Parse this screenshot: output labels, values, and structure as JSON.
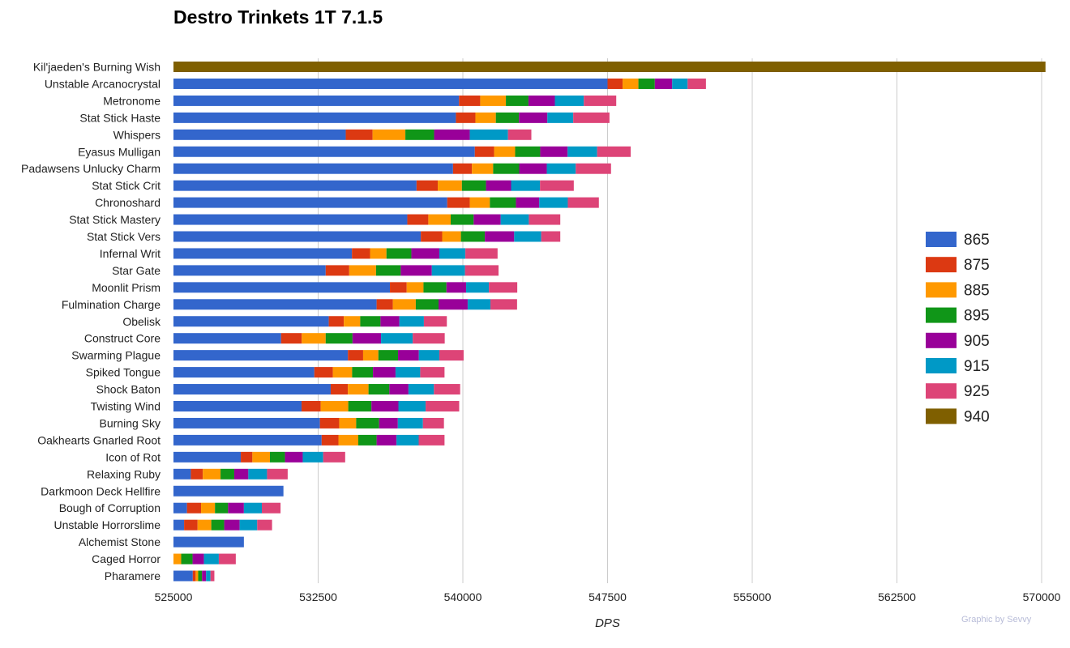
{
  "chart_data": {
    "type": "bar",
    "orientation": "horizontal",
    "stacked": true,
    "title": "Destro Trinkets 1T 7.1.5",
    "xlabel": "DPS",
    "ylabel": "",
    "xlim": [
      525000,
      570000
    ],
    "x_ticks": [
      "525000",
      "532500",
      "540000",
      "547500",
      "555000",
      "562500",
      "570000"
    ],
    "x_tick_values": [
      525000,
      532500,
      540000,
      547500,
      555000,
      562500,
      570000
    ],
    "grid": true,
    "legend_position": "right",
    "credit": "Graphic by Sevvy",
    "series_names": [
      "865",
      "875",
      "885",
      "895",
      "905",
      "915",
      "925",
      "940"
    ],
    "series_colors": [
      "#3366cc",
      "#dc3912",
      "#ff9900",
      "#109618",
      "#990099",
      "#0099c6",
      "#dd4477",
      "#7f5f00"
    ],
    "categories": [
      "Kil'jaeden's Burning Wish",
      "Unstable Arcanocrystal",
      "Metronome",
      "Stat Stick Haste",
      "Whispers",
      "Eyasus Mulligan",
      "Padawsens Unlucky Charm",
      "Stat Stick Crit",
      "Chronoshard",
      "Stat Stick Mastery",
      "Stat Stick Vers",
      "Infernal Writ",
      "Star Gate",
      "Moonlit Prism",
      "Fulmination Charge",
      "Obelisk",
      "Construct Core",
      "Swarming Plague",
      "Spiked Tongue",
      "Shock Baton",
      "Twisting Wind",
      "Burning Sky",
      "Oakhearts Gnarled Root",
      "Icon of Rot",
      "Relaxing Ruby",
      "Darkmoon Deck Hellfire",
      "Bough of Corruption",
      "Unstable Horrorslime",
      "Alchemist Stone",
      "Caged Horror",
      "Pharamere"
    ],
    "cumulative_values": [
      [
        null,
        null,
        null,
        null,
        null,
        null,
        null,
        570200
      ],
      [
        547500,
        548280,
        549100,
        549950,
        550850,
        551650,
        552600,
        null
      ],
      [
        539800,
        540900,
        542230,
        543400,
        544770,
        546270,
        547950,
        null
      ],
      [
        539640,
        540650,
        541710,
        542910,
        544380,
        545720,
        547600,
        null
      ],
      [
        533930,
        535320,
        537020,
        538510,
        540360,
        542340,
        543550,
        null
      ],
      [
        540620,
        541620,
        542710,
        544010,
        545430,
        546960,
        548700,
        null
      ],
      [
        539490,
        540470,
        541570,
        542920,
        544350,
        545850,
        547680,
        null
      ],
      [
        537600,
        538700,
        539950,
        541200,
        542500,
        544000,
        545750,
        null
      ],
      [
        539190,
        540360,
        541400,
        542750,
        543960,
        545440,
        547050,
        null
      ],
      [
        537120,
        538210,
        539370,
        540560,
        541960,
        543420,
        545050,
        null
      ],
      [
        537820,
        538930,
        539900,
        541140,
        542660,
        544060,
        545050,
        null
      ],
      [
        534250,
        535190,
        536040,
        537330,
        538780,
        540130,
        541800,
        null
      ],
      [
        532890,
        534110,
        535500,
        536780,
        538390,
        540110,
        541850,
        null
      ],
      [
        536220,
        537090,
        537960,
        539150,
        540170,
        541350,
        542820,
        null
      ],
      [
        535530,
        536370,
        537560,
        538740,
        540250,
        541430,
        542810,
        null
      ],
      [
        533050,
        533830,
        534680,
        535730,
        536710,
        537980,
        539170,
        null
      ],
      [
        530580,
        531650,
        532890,
        534280,
        535760,
        537400,
        539060,
        null
      ],
      [
        534040,
        534830,
        535620,
        536640,
        537720,
        538780,
        540040,
        null
      ],
      [
        532300,
        533260,
        534260,
        535340,
        536510,
        537790,
        539050,
        null
      ],
      [
        533150,
        534040,
        535110,
        536190,
        537180,
        538500,
        539860,
        null
      ],
      [
        531640,
        532630,
        534060,
        535260,
        536660,
        538070,
        539810,
        null
      ],
      [
        532590,
        533590,
        534470,
        535660,
        536630,
        537930,
        539020,
        null
      ],
      [
        532680,
        533550,
        534580,
        535530,
        536560,
        537710,
        539050,
        null
      ],
      [
        528490,
        529090,
        530000,
        530780,
        531700,
        532760,
        533900,
        null
      ],
      [
        525900,
        526520,
        527440,
        528150,
        528880,
        529850,
        530920,
        null
      ],
      [
        530700,
        null,
        null,
        null,
        null,
        null,
        null,
        null
      ],
      [
        525700,
        526430,
        527150,
        527830,
        528650,
        529580,
        530550,
        null
      ],
      [
        525550,
        526250,
        526960,
        527630,
        528430,
        529340,
        530110,
        null
      ],
      [
        528650,
        null,
        null,
        null,
        null,
        null,
        null,
        null
      ],
      [
        null,
        null,
        525400,
        525990,
        526580,
        527350,
        528230,
        null
      ],
      [
        526000,
        526150,
        526280,
        526480,
        526690,
        526920,
        527120,
        null
      ]
    ]
  }
}
